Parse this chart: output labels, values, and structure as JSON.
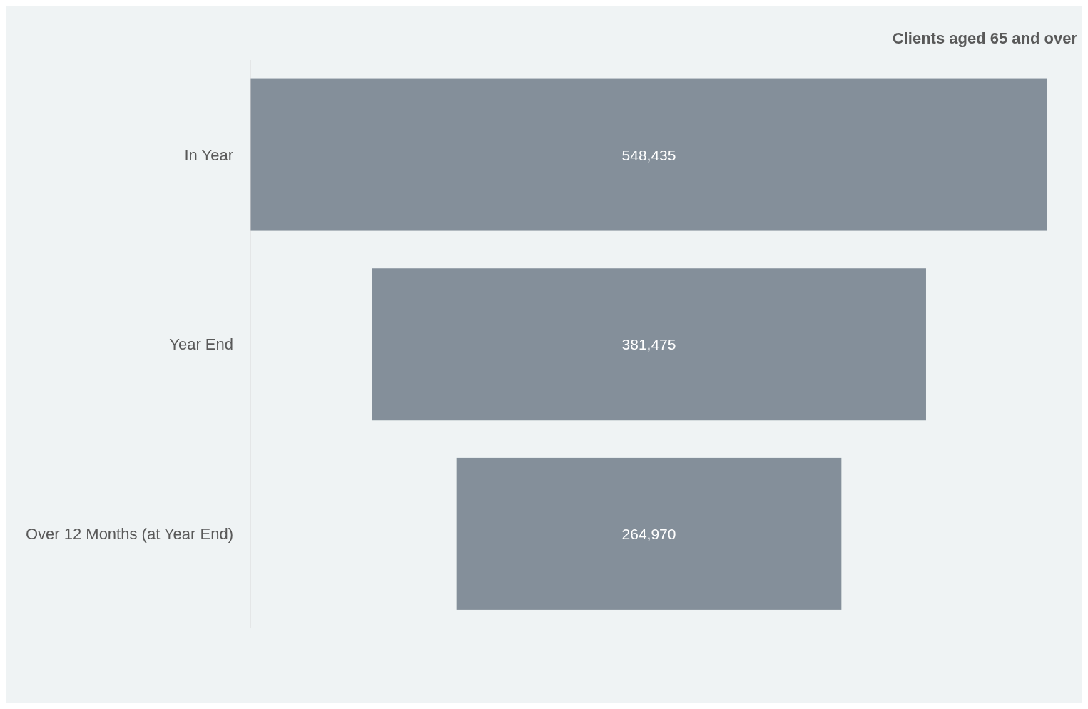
{
  "chart_data": {
    "type": "other",
    "title": "Clients aged 65 and over",
    "categories": [
      "In Year",
      "Year End",
      "Over 12 Months (at Year End)"
    ],
    "values": [
      548435,
      381475,
      264970
    ],
    "color": "#848f9a",
    "value_labels": [
      "548,435",
      "381,475",
      "264,970"
    ]
  }
}
